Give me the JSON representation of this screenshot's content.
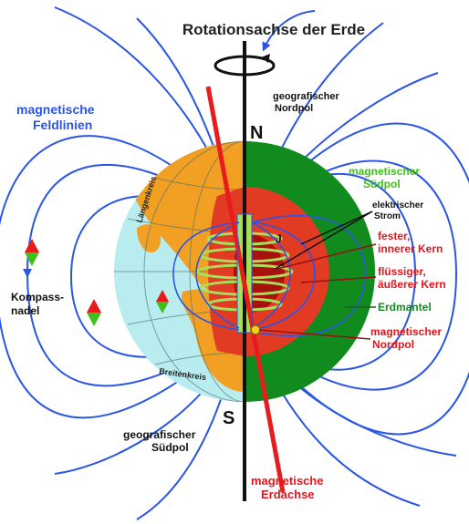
{
  "title": "Rotationsachse der Erde",
  "labels": {
    "field_lines": [
      "magnetische",
      "Feldlinien"
    ],
    "geo_north": [
      "geografischer",
      "Nordpol"
    ],
    "north_letter": "N",
    "mag_south": [
      "magnetischer",
      "Südpol"
    ],
    "current": [
      "elektrischer",
      "Strom"
    ],
    "current_letter": "J",
    "inner_core": [
      "fester,",
      "innerer Kern"
    ],
    "outer_core": [
      "flüssiger,",
      "äußerer Kern"
    ],
    "mantle": "Erdmantel",
    "mag_north": [
      "magnetischer",
      "Nordpol"
    ],
    "compass": [
      "Kompass-",
      "nadel"
    ],
    "longitude": "Längenkreis",
    "latitude": "Breitenkreis",
    "south_letter": "S",
    "geo_south": [
      "geografischer",
      "Südpol"
    ],
    "mag_axis": [
      "magnetische",
      "Erdachse"
    ]
  },
  "colors": {
    "field_line": "#2a55e6",
    "ocean": "#b8ecef",
    "land": "#f2a024",
    "mantle": "#118a1e",
    "outer_core": "#e23b24",
    "inner_core": "#a8120c",
    "axis": "#111111",
    "mag_axis": "#e81c1c",
    "coil": "#a6e05a",
    "green_label": "#3fbf1e",
    "red_label": "#e8141c"
  }
}
